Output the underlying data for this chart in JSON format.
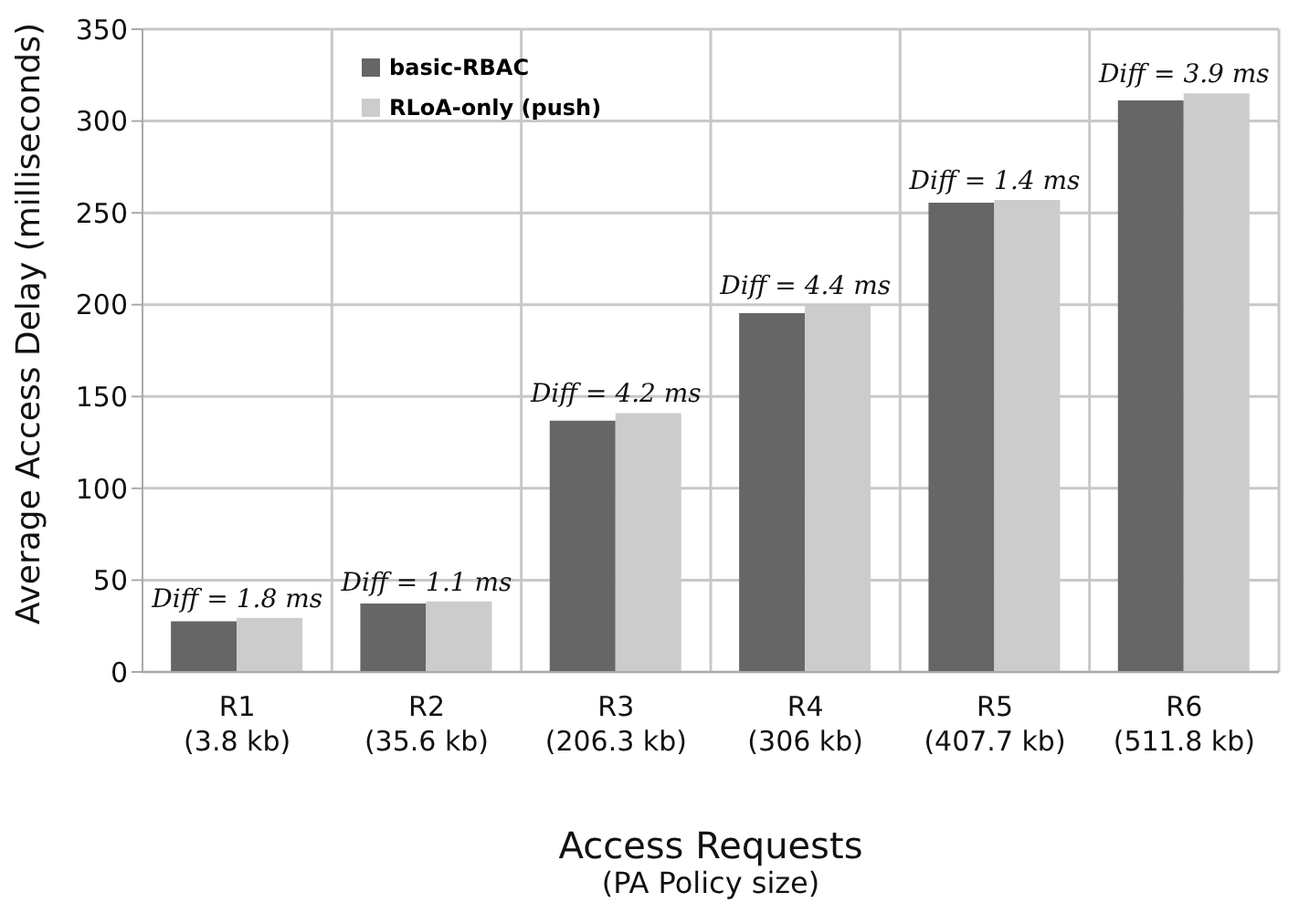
{
  "chart_data": {
    "type": "bar",
    "xlabel": "Access Requests\n(PA Policy size)",
    "ylabel": "Average Access Delay (milliseconds)",
    "categories": [
      "R1\n(3.8 kb)",
      "R2\n(35.6 kb)",
      "R3\n(206.3 kb)",
      "R4\n(306 kb)",
      "R5\n(407.7 kb)",
      "R6\n(511.8 kb)"
    ],
    "series": [
      {
        "name": "basic-RBAC",
        "color": "#666666",
        "values": [
          27.6,
          37.3,
          136.8,
          195.4,
          255.6,
          311.2
        ]
      },
      {
        "name": "RLoA-only (push)",
        "color": "#cccccc",
        "values": [
          29.4,
          38.4,
          141.0,
          199.8,
          257.0,
          315.1
        ]
      }
    ],
    "ylim": [
      0,
      350
    ],
    "yticks": [
      0,
      50,
      100,
      150,
      200,
      250,
      300,
      350
    ],
    "grid": true,
    "legend": "top left",
    "annotations": [
      {
        "text": "Diff = 1.8 ms",
        "x": "R1\n(3.8 kb)",
        "y": 29.4
      },
      {
        "text": "Diff = 1.1 ms",
        "x": "R2\n(35.6 kb)",
        "y": 38.4
      },
      {
        "text": "Diff = 4.2 ms",
        "x": "R3\n(206.3 kb)",
        "y": 141.0
      },
      {
        "text": "Diff = 4.4 ms",
        "x": "R4\n(306 kb)",
        "y": 199.8
      },
      {
        "text": "Diff = 1.4 ms",
        "x": "R5\n(407.7 kb)",
        "y": 257.0
      },
      {
        "text": "Diff = 3.9 ms",
        "x": "R6\n(511.8 kb)",
        "y": 315.1
      }
    ]
  }
}
